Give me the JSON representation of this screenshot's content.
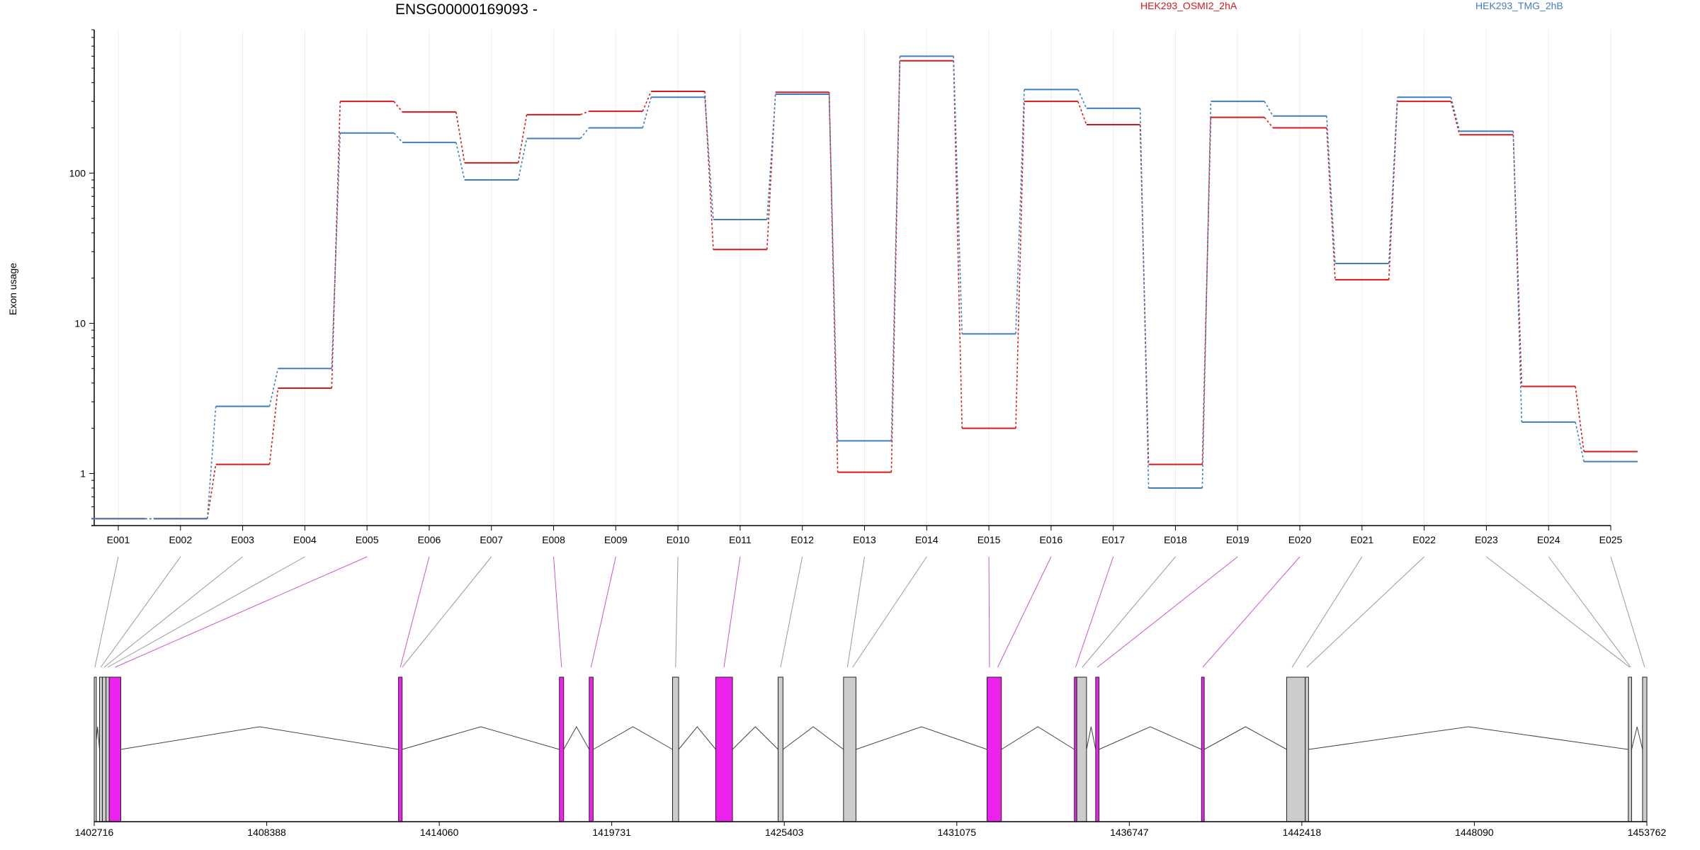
{
  "chart_data": {
    "type": "line",
    "title": "ENSG00000169093 -",
    "ylabel": "Exon usage",
    "y_scale": "log",
    "ylim": [
      0.45,
      900
    ],
    "yticks": [
      1,
      10,
      100
    ],
    "ytick_labels": [
      "1",
      "10",
      "100"
    ],
    "categories": [
      "E001",
      "E002",
      "E003",
      "E004",
      "E005",
      "E006",
      "E007",
      "E008",
      "E009",
      "E010",
      "E011",
      "E012",
      "E013",
      "E014",
      "E015",
      "E016",
      "E017",
      "E018",
      "E019",
      "E020",
      "E021",
      "E022",
      "E023",
      "E024",
      "E025"
    ],
    "series": [
      {
        "name": "HEK293_OSMI2_2hA",
        "color": "#d7191c",
        "values": [
          0.5,
          0.5,
          1.15,
          3.7,
          300,
          255,
          117,
          245,
          258,
          350,
          31,
          345,
          1.02,
          560,
          2.0,
          300,
          210,
          1.15,
          235,
          200,
          19.5,
          300,
          180,
          3.8,
          1.4
        ]
      },
      {
        "name": "HEK293_TMG_2hB",
        "color": "#3f7fbf",
        "values": [
          0.5,
          0.5,
          2.8,
          5.0,
          185,
          160,
          90,
          170,
          200,
          320,
          49,
          335,
          1.65,
          600,
          8.5,
          360,
          270,
          0.8,
          300,
          240,
          25.0,
          320,
          190,
          2.2,
          1.2
        ]
      }
    ],
    "gene_model": {
      "genomic_ticks": [
        "1402716",
        "1408388",
        "1414060",
        "1419731",
        "1425403",
        "1431075",
        "1436747",
        "1442418",
        "1448090",
        "1453762"
      ],
      "genomic_range": [
        1402716,
        1453762
      ],
      "exons": [
        {
          "start": 1402716,
          "end": 1402760,
          "color": "#cccccc"
        },
        {
          "start": 1402890,
          "end": 1402985,
          "color": "#cccccc"
        },
        {
          "start": 1402985,
          "end": 1403105,
          "color": "#cccccc"
        },
        {
          "start": 1403105,
          "end": 1403210,
          "color": "#cccccc"
        },
        {
          "start": 1403210,
          "end": 1403590,
          "color": "#ee22ee"
        },
        {
          "start": 1412720,
          "end": 1412840,
          "color": "#ee22ee"
        },
        {
          "start": 1418010,
          "end": 1418150,
          "color": "#ee22ee"
        },
        {
          "start": 1418990,
          "end": 1419120,
          "color": "#ee22ee"
        },
        {
          "start": 1421730,
          "end": 1421930,
          "color": "#cccccc"
        },
        {
          "start": 1423150,
          "end": 1423700,
          "color": "#ee22ee"
        },
        {
          "start": 1425200,
          "end": 1425360,
          "color": "#cccccc"
        },
        {
          "start": 1427350,
          "end": 1427760,
          "color": "#cccccc"
        },
        {
          "start": 1432070,
          "end": 1432540,
          "color": "#ee22ee"
        },
        {
          "start": 1434940,
          "end": 1435020,
          "color": "#ee22ee"
        },
        {
          "start": 1435020,
          "end": 1435340,
          "color": "#cccccc"
        },
        {
          "start": 1435640,
          "end": 1435750,
          "color": "#ee22ee"
        },
        {
          "start": 1439120,
          "end": 1439210,
          "color": "#ee22ee"
        },
        {
          "start": 1441920,
          "end": 1442530,
          "color": "#cccccc"
        },
        {
          "start": 1442530,
          "end": 1442640,
          "color": "#cccccc"
        },
        {
          "start": 1453150,
          "end": 1453260,
          "color": "#cccccc"
        },
        {
          "start": 1453620,
          "end": 1453762,
          "color": "#cccccc"
        }
      ],
      "connector_colors": [
        "#999999",
        "#999999",
        "#999999",
        "#999999",
        "#cc55cc",
        "#cc55cc",
        "#999999",
        "#cc55cc",
        "#cc55cc",
        "#999999",
        "#cc55cc",
        "#999999",
        "#999999",
        "#999999",
        "#cc55cc",
        "#cc55cc",
        "#cc55cc",
        "#999999",
        "#cc55cc",
        "#cc55cc",
        "#999999",
        "#999999",
        "#999999",
        "#999999",
        "#999999"
      ],
      "connector_targets": [
        1402740,
        1402930,
        1403040,
        1403160,
        1403400,
        1412780,
        1412840,
        1418080,
        1419050,
        1421830,
        1423420,
        1425280,
        1427480,
        1427650,
        1432150,
        1432420,
        1434980,
        1435200,
        1435700,
        1439160,
        1442100,
        1442580,
        1453200,
        1453230,
        1453690
      ]
    }
  }
}
